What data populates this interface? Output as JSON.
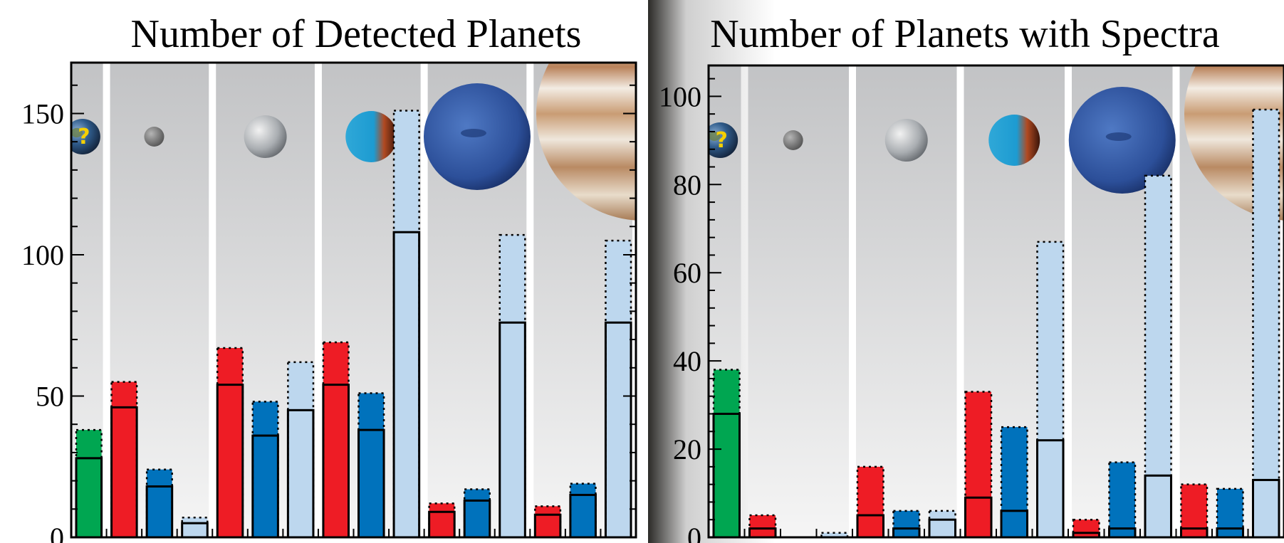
{
  "chart_data": [
    {
      "type": "bar",
      "title": "Number of Detected Planets",
      "xlabel": "",
      "ylabel": "",
      "ylim": [
        0,
        168
      ],
      "yticks": [
        0,
        50,
        100,
        150
      ],
      "groups": [
        {
          "bars": [
            {
              "color": "#00a651",
              "solid": 28,
              "dotted": 38
            }
          ]
        },
        {
          "bars": [
            {
              "color": "#ee1c25",
              "solid": 46,
              "dotted": 55
            },
            {
              "color": "#0072bc",
              "solid": 18,
              "dotted": 24
            },
            {
              "color": "#bdd7ee",
              "solid": 5,
              "dotted": 7
            }
          ]
        },
        {
          "bars": [
            {
              "color": "#ee1c25",
              "solid": 54,
              "dotted": 67
            },
            {
              "color": "#0072bc",
              "solid": 36,
              "dotted": 48
            },
            {
              "color": "#bdd7ee",
              "solid": 45,
              "dotted": 62
            }
          ]
        },
        {
          "bars": [
            {
              "color": "#ee1c25",
              "solid": 54,
              "dotted": 69
            },
            {
              "color": "#0072bc",
              "solid": 38,
              "dotted": 51
            },
            {
              "color": "#bdd7ee",
              "solid": 108,
              "dotted": 151
            }
          ]
        },
        {
          "bars": [
            {
              "color": "#ee1c25",
              "solid": 9,
              "dotted": 12
            },
            {
              "color": "#0072bc",
              "solid": 13,
              "dotted": 17
            },
            {
              "color": "#bdd7ee",
              "solid": 76,
              "dotted": 107
            }
          ]
        },
        {
          "bars": [
            {
              "color": "#ee1c25",
              "solid": 8,
              "dotted": 11
            },
            {
              "color": "#0072bc",
              "solid": 15,
              "dotted": 19
            },
            {
              "color": "#bdd7ee",
              "solid": 76,
              "dotted": 105
            }
          ]
        }
      ]
    },
    {
      "type": "bar",
      "title": "Number of Planets with Spectra",
      "xlabel": "",
      "ylabel": "",
      "ylim": [
        0,
        107
      ],
      "yticks": [
        0,
        20,
        40,
        60,
        80,
        100
      ],
      "groups": [
        {
          "bars": [
            {
              "color": "#00a651",
              "solid": 28,
              "dotted": 38
            }
          ]
        },
        {
          "bars": [
            {
              "color": "#ee1c25",
              "solid": 2,
              "dotted": 5
            },
            {
              "color": "#0072bc",
              "solid": 0,
              "dotted": 0
            },
            {
              "color": "#bdd7ee",
              "solid": 0,
              "dotted": 1
            }
          ]
        },
        {
          "bars": [
            {
              "color": "#ee1c25",
              "solid": 5,
              "dotted": 16
            },
            {
              "color": "#0072bc",
              "solid": 2,
              "dotted": 6
            },
            {
              "color": "#bdd7ee",
              "solid": 4,
              "dotted": 6
            }
          ]
        },
        {
          "bars": [
            {
              "color": "#ee1c25",
              "solid": 9,
              "dotted": 33
            },
            {
              "color": "#0072bc",
              "solid": 6,
              "dotted": 25
            },
            {
              "color": "#bdd7ee",
              "solid": 22,
              "dotted": 67
            }
          ]
        },
        {
          "bars": [
            {
              "color": "#ee1c25",
              "solid": 1,
              "dotted": 4
            },
            {
              "color": "#0072bc",
              "solid": 2,
              "dotted": 17
            },
            {
              "color": "#bdd7ee",
              "solid": 14,
              "dotted": 82
            }
          ]
        },
        {
          "bars": [
            {
              "color": "#ee1c25",
              "solid": 2,
              "dotted": 12
            },
            {
              "color": "#0072bc",
              "solid": 2,
              "dotted": 11
            },
            {
              "color": "#bdd7ee",
              "solid": 13,
              "dotted": 97
            }
          ]
        }
      ]
    }
  ],
  "planet_icons": [
    "earth-question-icon",
    "rocky-planet-small-icon",
    "super-earth-icon",
    "water-world-icon",
    "neptune-icon",
    "jupiter-icon"
  ]
}
